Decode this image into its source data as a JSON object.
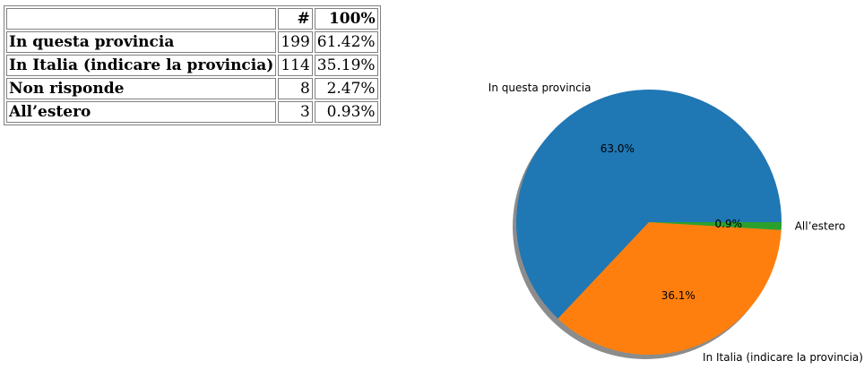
{
  "table": {
    "headers": [
      "",
      "#",
      "100%"
    ],
    "rows": [
      {
        "label": "In questa provincia",
        "count": "199",
        "percent": "61.42%"
      },
      {
        "label": "In Italia (indicare la provincia)",
        "count": "114",
        "percent": "35.19%"
      },
      {
        "label": "Non risponde",
        "count": "8",
        "percent": "2.47%"
      },
      {
        "label": "All’estero",
        "count": "3",
        "percent": "0.93%"
      }
    ]
  },
  "chart_data": {
    "type": "pie",
    "title": "",
    "start_angle_deg": 0,
    "counterclockwise": true,
    "shadow": true,
    "slices": [
      {
        "label": "In questa provincia",
        "value": 199,
        "pct_label": "63.0%",
        "color": "#1f77b4"
      },
      {
        "label": "In Italia (indicare la provincia)",
        "value": 114,
        "pct_label": "36.1%",
        "color": "#ff7f0e"
      },
      {
        "label": "All’estero",
        "value": 3,
        "pct_label": "0.9%",
        "color": "#2ca02c"
      }
    ]
  }
}
